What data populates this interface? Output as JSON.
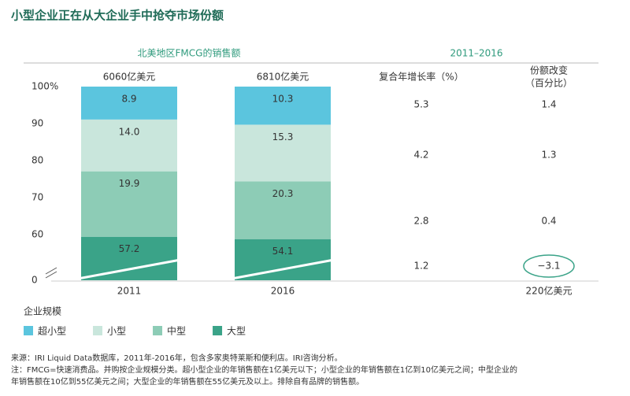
{
  "title": "小型企业正在从大企业手中抢夺市场份额",
  "chart_data": {
    "type": "stacked_bar",
    "subtitle": "北美地区FMCG的销售额",
    "categories": [
      "2011",
      "2016"
    ],
    "bar_totals": [
      "6060亿美元",
      "6810亿美元"
    ],
    "series": [
      {
        "name": "超小型",
        "color": "#5bc5de",
        "values": [
          8.9,
          10.3
        ],
        "value_labels": [
          "8.9",
          "10.3"
        ]
      },
      {
        "name": "小型",
        "color": "#c9e6dc",
        "values": [
          14,
          15.3
        ],
        "value_labels": [
          "14.0",
          "15.3"
        ]
      },
      {
        "name": "中型",
        "color": "#8dccb6",
        "values": [
          19.9,
          20.3
        ],
        "value_labels": [
          "19.9",
          "20.3"
        ]
      },
      {
        "name": "大型",
        "color": "#3aa388",
        "values": [
          57.2,
          54.1
        ],
        "value_labels": [
          "57.2",
          "54.1"
        ]
      }
    ],
    "ylim": [
      0,
      100
    ],
    "yticks": [
      0,
      60,
      70,
      80,
      90,
      {
        "value": 100,
        "label": "100%"
      }
    ],
    "axis_break": true,
    "legend_title": "企业规模",
    "legend": "bottom-left"
  },
  "table": {
    "period": "2011–2016",
    "headers": [
      "复合年增长率（%）",
      "份额改变",
      "（百分比）"
    ],
    "rows": [
      [
        "5.3",
        "1.4"
      ],
      [
        "4.2",
        "1.3"
      ],
      [
        "2.8",
        "0.4"
      ],
      [
        "1.2",
        "−3.1"
      ]
    ],
    "footer": "220亿美元"
  },
  "notes": [
    "来源：IRI Liquid Data数据库，2011年-2016年，包含多家奥特莱斯和便利店。IRI咨询分析。",
    "注：FMCG=快速消费品。并购按企业规模分类。超小型企业的年销售额在1亿美元以下；小型企业的年销售额在1亿到10亿美元之间；中型企业的",
    "年销售额在10亿到55亿美元之间；大型企业的年销售额在55亿美元及以上。排除自有品牌的销售额。"
  ]
}
